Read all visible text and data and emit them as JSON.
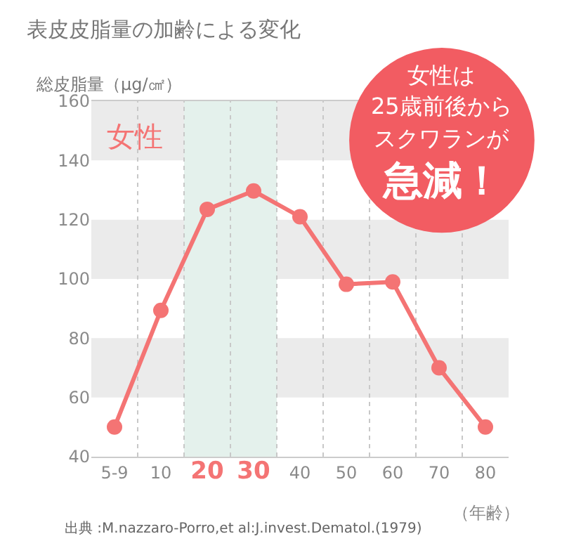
{
  "chart_data": {
    "type": "line",
    "title": "表皮皮脂量の加齢による変化",
    "ylabel": "総皮脂量（μg/㎠）",
    "xlabel": "（年齢）",
    "categories": [
      "5-9",
      "10",
      "20",
      "30",
      "40",
      "50",
      "60",
      "70",
      "80"
    ],
    "series": [
      {
        "color": "#f47474",
        "values": [
          50,
          89.4,
          123.5,
          129.7,
          121,
          98.2,
          99,
          70,
          50
        ]
      }
    ],
    "ylim": [
      40,
      160
    ],
    "yticks": [
      40,
      60,
      80,
      100,
      120,
      140,
      160
    ],
    "grid": "x",
    "marker": "circle",
    "line_style": "solid",
    "bands": [
      {
        "axis": "y",
        "from": 140,
        "to": 160,
        "color": "#ebebeb"
      },
      {
        "axis": "y",
        "from": 100,
        "to": 120,
        "color": "#ebebeb"
      },
      {
        "axis": "y",
        "from": 60,
        "to": 80,
        "color": "#ebebeb"
      },
      {
        "axis": "x",
        "from": "20",
        "to": "30",
        "color": "#e4f1ec"
      }
    ],
    "annotations": [
      "女性",
      "女性は",
      "25歳前後から",
      "スクワランが",
      "急減！",
      "出典 :M.nazzaro-Porro,et al:J.invest.Dematol.(1979)"
    ]
  }
}
